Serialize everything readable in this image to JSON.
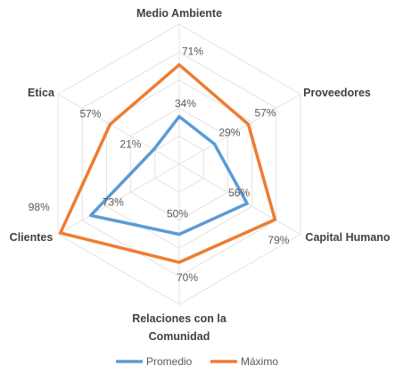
{
  "chart_data": {
    "type": "radar",
    "categories": [
      "Medio Ambiente",
      "Proveedores",
      "Capital Humano",
      "Relaciones con la Comunidad",
      "Clientes",
      "Etica"
    ],
    "series": [
      {
        "name": "Promedio",
        "color": "#5b9bd5",
        "values": [
          34,
          29,
          56,
          50,
          73,
          21
        ],
        "value_labels": [
          "34%",
          "29%",
          "56%",
          "50%",
          "73%",
          "21%"
        ]
      },
      {
        "name": "Máximo",
        "color": "#ed7d31",
        "values": [
          71,
          57,
          79,
          70,
          98,
          57
        ],
        "value_labels": [
          "71%",
          "57%",
          "79%",
          "70%",
          "98%",
          "57%"
        ]
      }
    ],
    "rlim": [
      0,
      100
    ],
    "rticks": [
      0,
      20,
      40,
      60,
      80,
      100
    ],
    "grid": true,
    "legend": "bottom"
  }
}
